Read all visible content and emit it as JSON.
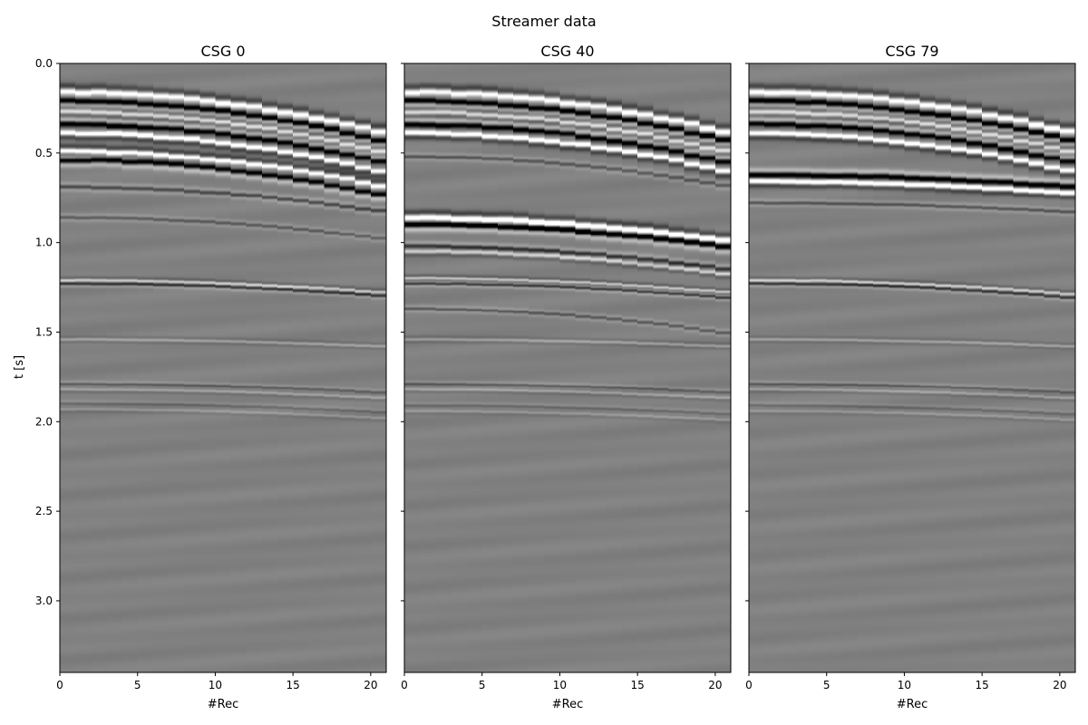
{
  "figure": {
    "suptitle": "Streamer data"
  },
  "chart_data": [
    {
      "type": "heatmap",
      "title": "CSG 0",
      "xlabel": "#Rec",
      "ylabel": "t [s]",
      "xlim": [
        0,
        21
      ],
      "ylim": [
        3.4,
        0.0
      ],
      "y_inverted": true,
      "colormap": "gray",
      "x_ticks": [
        0,
        5,
        10,
        15,
        20
      ],
      "y_ticks": [
        0.0,
        0.5,
        1.0,
        1.5,
        2.0,
        2.5,
        3.0
      ],
      "show_y_ticklabels": true,
      "events": [
        {
          "t0": 0.16,
          "curv": 0.23,
          "amp": 1.0,
          "width": 0.026,
          "jitter": 0.6
        },
        {
          "t0": 0.21,
          "curv": 0.23,
          "amp": -1.0,
          "width": 0.022,
          "jitter": 0.6
        },
        {
          "t0": 0.27,
          "curv": 0.23,
          "amp": 0.7,
          "width": 0.02,
          "jitter": 0.6
        },
        {
          "t0": 0.34,
          "curv": 0.22,
          "amp": -1.0,
          "width": 0.024,
          "jitter": 0.6
        },
        {
          "t0": 0.39,
          "curv": 0.22,
          "amp": 1.0,
          "width": 0.022,
          "jitter": 0.6
        },
        {
          "t0": 0.49,
          "curv": 0.2,
          "amp": 1.0,
          "width": 0.022,
          "jitter": 0.6
        },
        {
          "t0": 0.54,
          "curv": 0.2,
          "amp": -1.0,
          "width": 0.022,
          "jitter": 0.6
        },
        {
          "t0": 0.69,
          "curv": 0.14,
          "amp": -0.45,
          "width": 0.016,
          "jitter": 0.4
        },
        {
          "t0": 0.86,
          "curv": 0.12,
          "amp": -0.3,
          "width": 0.014,
          "jitter": 0.3
        },
        {
          "t0": 1.21,
          "curv": 0.07,
          "amp": 0.45,
          "width": 0.012,
          "jitter": 0.3
        },
        {
          "t0": 1.23,
          "curv": 0.07,
          "amp": -0.45,
          "width": 0.012,
          "jitter": 0.3
        },
        {
          "t0": 1.54,
          "curv": 0.04,
          "amp": 0.3,
          "width": 0.012,
          "jitter": 0.2
        },
        {
          "t0": 1.79,
          "curv": 0.05,
          "amp": -0.3,
          "width": 0.012,
          "jitter": 0.2
        },
        {
          "t0": 1.82,
          "curv": 0.05,
          "amp": 0.3,
          "width": 0.012,
          "jitter": 0.2
        },
        {
          "t0": 1.9,
          "curv": 0.05,
          "amp": -0.22,
          "width": 0.012,
          "jitter": 0.2
        },
        {
          "t0": 1.93,
          "curv": 0.05,
          "amp": 0.22,
          "width": 0.012,
          "jitter": 0.2
        }
      ]
    },
    {
      "type": "heatmap",
      "title": "CSG 40",
      "xlabel": "#Rec",
      "ylabel": "",
      "xlim": [
        0,
        21
      ],
      "ylim": [
        3.4,
        0.0
      ],
      "y_inverted": true,
      "colormap": "gray",
      "x_ticks": [
        0,
        5,
        10,
        15,
        20
      ],
      "y_ticks": [
        0.0,
        0.5,
        1.0,
        1.5,
        2.0,
        2.5,
        3.0
      ],
      "show_y_ticklabels": false,
      "events": [
        {
          "t0": 0.16,
          "curv": 0.23,
          "amp": 1.0,
          "width": 0.026,
          "jitter": 0.6
        },
        {
          "t0": 0.21,
          "curv": 0.23,
          "amp": -1.0,
          "width": 0.022,
          "jitter": 0.6
        },
        {
          "t0": 0.27,
          "curv": 0.23,
          "amp": 0.7,
          "width": 0.02,
          "jitter": 0.6
        },
        {
          "t0": 0.34,
          "curv": 0.22,
          "amp": -1.0,
          "width": 0.024,
          "jitter": 0.6
        },
        {
          "t0": 0.39,
          "curv": 0.22,
          "amp": 1.0,
          "width": 0.022,
          "jitter": 0.6
        },
        {
          "t0": 0.52,
          "curv": 0.17,
          "amp": -0.35,
          "width": 0.015,
          "jitter": 0.4
        },
        {
          "t0": 0.86,
          "curv": 0.13,
          "amp": 1.0,
          "width": 0.024,
          "jitter": 0.6
        },
        {
          "t0": 0.9,
          "curv": 0.13,
          "amp": -1.0,
          "width": 0.022,
          "jitter": 0.6
        },
        {
          "t0": 1.02,
          "curv": 0.13,
          "amp": -0.55,
          "width": 0.016,
          "jitter": 0.5
        },
        {
          "t0": 1.05,
          "curv": 0.13,
          "amp": 0.55,
          "width": 0.016,
          "jitter": 0.5
        },
        {
          "t0": 1.2,
          "curv": 0.08,
          "amp": 0.5,
          "width": 0.012,
          "jitter": 0.3
        },
        {
          "t0": 1.23,
          "curv": 0.08,
          "amp": -0.5,
          "width": 0.012,
          "jitter": 0.3
        },
        {
          "t0": 1.37,
          "curv": 0.14,
          "amp": -0.35,
          "width": 0.013,
          "jitter": 0.3
        },
        {
          "t0": 1.54,
          "curv": 0.04,
          "amp": 0.3,
          "width": 0.012,
          "jitter": 0.2
        },
        {
          "t0": 1.79,
          "curv": 0.05,
          "amp": -0.3,
          "width": 0.012,
          "jitter": 0.2
        },
        {
          "t0": 1.82,
          "curv": 0.05,
          "amp": 0.3,
          "width": 0.012,
          "jitter": 0.2
        },
        {
          "t0": 1.91,
          "curv": 0.05,
          "amp": -0.22,
          "width": 0.012,
          "jitter": 0.2
        },
        {
          "t0": 1.94,
          "curv": 0.05,
          "amp": 0.22,
          "width": 0.012,
          "jitter": 0.2
        }
      ]
    },
    {
      "type": "heatmap",
      "title": "CSG 79",
      "xlabel": "#Rec",
      "ylabel": "",
      "xlim": [
        0,
        21
      ],
      "ylim": [
        3.4,
        0.0
      ],
      "y_inverted": true,
      "colormap": "gray",
      "x_ticks": [
        0,
        5,
        10,
        15,
        20
      ],
      "y_ticks": [
        0.0,
        0.5,
        1.0,
        1.5,
        2.0,
        2.5,
        3.0
      ],
      "show_y_ticklabels": false,
      "events": [
        {
          "t0": 0.16,
          "curv": 0.23,
          "amp": 1.0,
          "width": 0.026,
          "jitter": 0.6
        },
        {
          "t0": 0.21,
          "curv": 0.23,
          "amp": -1.0,
          "width": 0.022,
          "jitter": 0.6
        },
        {
          "t0": 0.27,
          "curv": 0.23,
          "amp": 0.7,
          "width": 0.02,
          "jitter": 0.6
        },
        {
          "t0": 0.34,
          "curv": 0.22,
          "amp": -1.0,
          "width": 0.024,
          "jitter": 0.6
        },
        {
          "t0": 0.39,
          "curv": 0.22,
          "amp": 1.0,
          "width": 0.022,
          "jitter": 0.6
        },
        {
          "t0": 0.62,
          "curv": 0.07,
          "amp": -1.0,
          "width": 0.022,
          "jitter": 0.5
        },
        {
          "t0": 0.66,
          "curv": 0.07,
          "amp": 1.0,
          "width": 0.02,
          "jitter": 0.5
        },
        {
          "t0": 0.78,
          "curv": 0.05,
          "amp": -0.35,
          "width": 0.014,
          "jitter": 0.3
        },
        {
          "t0": 1.21,
          "curv": 0.08,
          "amp": 0.45,
          "width": 0.012,
          "jitter": 0.3
        },
        {
          "t0": 1.23,
          "curv": 0.08,
          "amp": -0.45,
          "width": 0.012,
          "jitter": 0.3
        },
        {
          "t0": 1.54,
          "curv": 0.04,
          "amp": 0.3,
          "width": 0.012,
          "jitter": 0.2
        },
        {
          "t0": 1.79,
          "curv": 0.05,
          "amp": -0.3,
          "width": 0.012,
          "jitter": 0.2
        },
        {
          "t0": 1.82,
          "curv": 0.05,
          "amp": 0.3,
          "width": 0.012,
          "jitter": 0.2
        },
        {
          "t0": 1.91,
          "curv": 0.05,
          "amp": -0.22,
          "width": 0.012,
          "jitter": 0.2
        },
        {
          "t0": 1.94,
          "curv": 0.05,
          "amp": 0.22,
          "width": 0.012,
          "jitter": 0.2
        }
      ]
    }
  ]
}
